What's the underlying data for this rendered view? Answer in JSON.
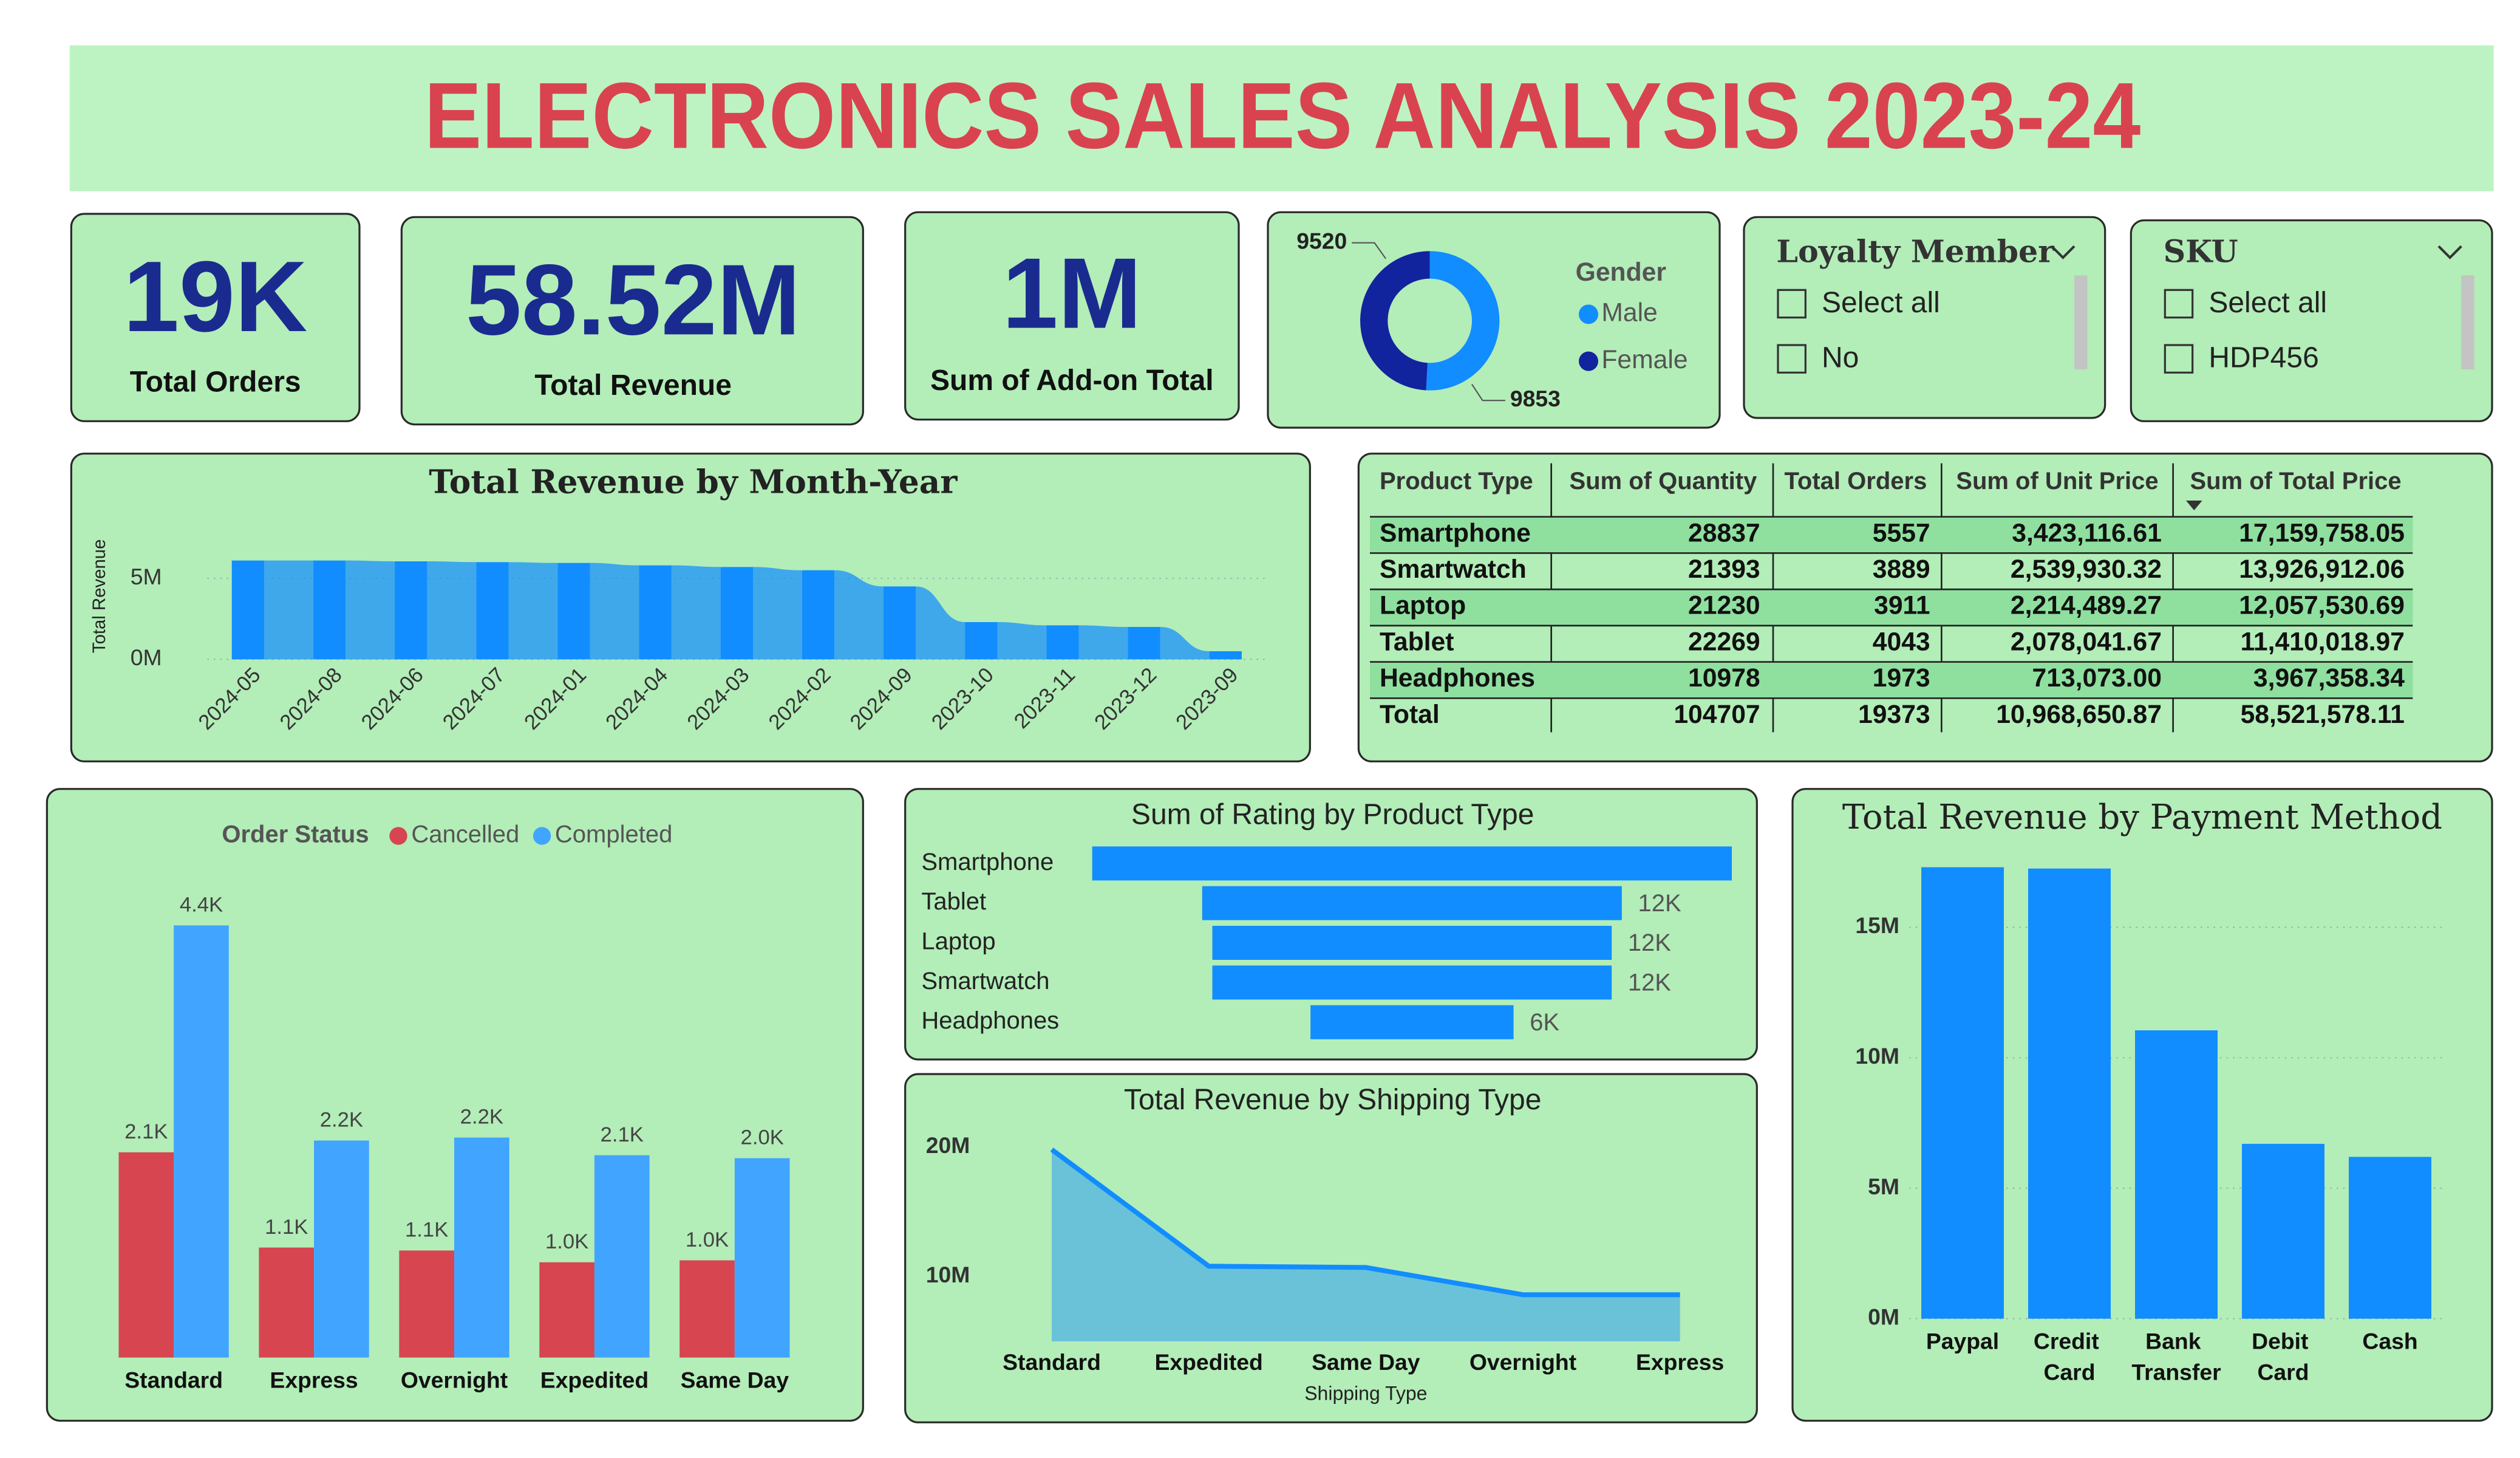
{
  "header": {
    "title": "ELECTRONICS SALES ANALYSIS 2023-24"
  },
  "kpis": [
    {
      "value": "19K",
      "label": "Total Orders"
    },
    {
      "value": "58.52M",
      "label": "Total Revenue"
    },
    {
      "value": "1M",
      "label": "Sum of Add-on Total"
    }
  ],
  "slicers": [
    {
      "title": "Loyalty Member",
      "items": [
        "Select all",
        "No"
      ]
    },
    {
      "title": "SKU",
      "items": [
        "Select all",
        "HDP456"
      ]
    }
  ],
  "table": {
    "columns": [
      "Product Type",
      "Sum of Quantity",
      "Total Orders",
      "Sum of Unit Price",
      "Sum of Total Price"
    ],
    "rows": [
      [
        "Smartphone",
        "28837",
        "5557",
        "3,423,116.61",
        "17,159,758.05"
      ],
      [
        "Smartwatch",
        "21393",
        "3889",
        "2,539,930.32",
        "13,926,912.06"
      ],
      [
        "Laptop",
        "21230",
        "3911",
        "2,214,489.27",
        "12,057,530.69"
      ],
      [
        "Tablet",
        "22269",
        "4043",
        "2,078,041.67",
        "11,410,018.97"
      ],
      [
        "Headphones",
        "10978",
        "1973",
        "713,073.00",
        "3,967,358.34"
      ]
    ],
    "total": [
      "Total",
      "104707",
      "19373",
      "10,968,650.87",
      "58,521,578.11"
    ]
  },
  "chart_data": [
    {
      "type": "pie",
      "legend_title": "Gender",
      "categories": [
        "Male",
        "Female"
      ],
      "values": [
        9853,
        9520
      ],
      "colors": [
        "#118dff",
        "#12239e"
      ]
    },
    {
      "type": "ribbon",
      "title": "Total Revenue by Month-Year",
      "y_label": "Total Revenue",
      "categories": [
        "2024-05",
        "2024-08",
        "2024-06",
        "2024-07",
        "2024-01",
        "2024-04",
        "2024-03",
        "2024-02",
        "2024-09",
        "2023-10",
        "2023-11",
        "2023-12",
        "2023-09"
      ],
      "values": [
        6100000,
        6100000,
        6050000,
        6000000,
        5950000,
        5800000,
        5700000,
        5500000,
        4500000,
        2300000,
        2100000,
        2000000,
        500000
      ],
      "color": "#118dff",
      "ylim": [
        0,
        6500000
      ],
      "yticks": [
        {
          "value": 0,
          "label": "0M"
        },
        {
          "value": 5000000,
          "label": "5M"
        }
      ],
      "grid": true
    },
    {
      "type": "bar",
      "legend_title": "Order Status",
      "categories": [
        "Standard",
        "Express",
        "Overnight",
        "Expedited",
        "Same Day"
      ],
      "ylim": [
        0,
        4800
      ],
      "series": [
        {
          "name": "Cancelled",
          "color": "#d64550",
          "values": [
            2090,
            1120,
            1090,
            970,
            990
          ],
          "value_labels": [
            "2.1K",
            "1.1K",
            "1.1K",
            "1.0K",
            "1.0K"
          ]
        },
        {
          "name": "Completed",
          "color": "#41a5ff",
          "values": [
            4400,
            2210,
            2240,
            2060,
            2030
          ],
          "value_labels": [
            "4.4K",
            "2.2K",
            "2.2K",
            "2.1K",
            "2.0K"
          ]
        }
      ]
    },
    {
      "type": "funnel",
      "title": "Sum of Rating by Product Type",
      "categories": [
        "Smartphone",
        "Tablet",
        "Laptop",
        "Smartwatch",
        "Headphones"
      ],
      "values": [
        18900,
        12400,
        11800,
        11800,
        6000
      ],
      "value_labels": [
        null,
        "12K",
        "12K",
        "12K",
        "6K"
      ],
      "color": "#118dff"
    },
    {
      "type": "area",
      "title": "Total Revenue by Shipping Type",
      "x_label": "Shipping Type",
      "categories": [
        "Standard",
        "Expedited",
        "Same Day",
        "Overnight",
        "Express"
      ],
      "values": [
        19800000,
        10800000,
        10700000,
        8600000,
        8600000
      ],
      "color": "#118dff",
      "ylim": [
        5000000,
        21500000
      ],
      "yticks": [
        {
          "value": 10000000,
          "label": "10M"
        },
        {
          "value": 20000000,
          "label": "20M"
        }
      ]
    },
    {
      "type": "bar",
      "title": "Total Revenue by Payment Method",
      "categories": [
        "Paypal",
        "Credit Card",
        "Bank Transfer",
        "Debit Card",
        "Cash"
      ],
      "values": [
        17300000,
        17250000,
        11050000,
        6700000,
        6200000
      ],
      "color": "#118dff",
      "ylim": [
        0,
        18500000
      ],
      "yticks": [
        {
          "value": 0,
          "label": "0M"
        },
        {
          "value": 5000000,
          "label": "5M"
        },
        {
          "value": 10000000,
          "label": "10M"
        },
        {
          "value": 15000000,
          "label": "15M"
        }
      ],
      "grid": true
    }
  ]
}
